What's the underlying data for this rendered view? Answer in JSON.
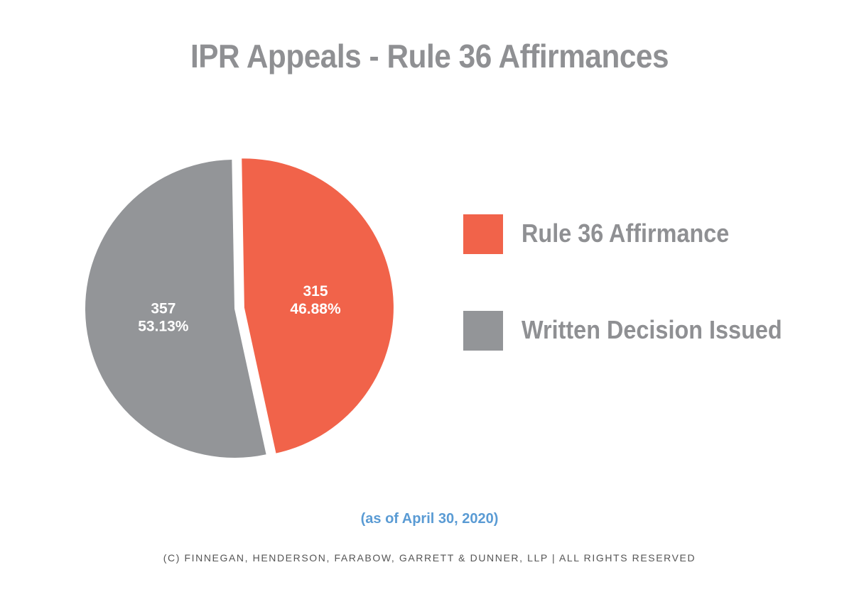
{
  "title": "IPR Appeals - Rule 36 Affirmances",
  "note": "(as of April 30, 2020)",
  "copyright": "(c) finnegan, henderson, farabow, garrett & dunner, llp | all rights reserved",
  "colors": {
    "rule36": "#f1634a",
    "written": "#939598",
    "title": "#8f9093",
    "note": "#5a9bd4"
  },
  "chart_data": {
    "type": "pie",
    "title": "IPR Appeals - Rule 36 Affirmances",
    "legend_position": "right",
    "slices": [
      {
        "label": "Rule 36 Affirmance",
        "value": 315,
        "percent": "46.88%",
        "value_label": "315",
        "color": "#f1634a",
        "exploded": true
      },
      {
        "label": "Written Decision Issued",
        "value": 357,
        "percent": "53.13%",
        "value_label": "357",
        "color": "#939598",
        "exploded": false
      }
    ]
  }
}
